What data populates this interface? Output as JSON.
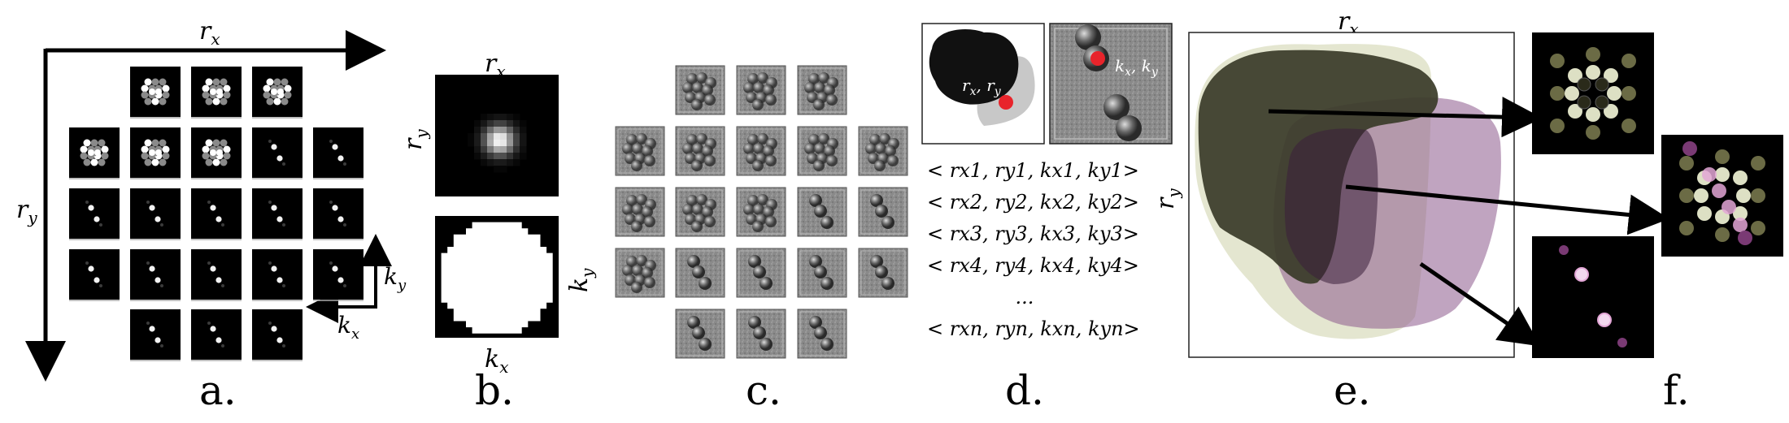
{
  "axis_labels": {
    "rx": "r",
    "rx_sub": "x",
    "ry": "r",
    "ry_sub": "y",
    "kx": "k",
    "kx_sub": "x",
    "ky": "k",
    "ky_sub": "y",
    "d_rxry": "r",
    "d_rxry_mid": "x",
    "d_rxry_sep": ", ",
    "d_rxry_sub2": "y",
    "d_kxky": "k",
    "d_kxky_mid": "x",
    "d_kxky_sub2": "y"
  },
  "tuples": [
    "< rx1, ry1, kx1, ky1>",
    "< rx2, ry2, kx2, ky2>",
    "< rx3, ry3, kx3, ky3>",
    "< rx4, ry4, kx4, ky4>",
    "...",
    "< rxn, ryn, kxn, kyn>"
  ],
  "panel_labels": [
    "a.",
    "b.",
    "c.",
    "d.",
    "e.",
    "f."
  ],
  "colors": {
    "dark_olive": "#3a3b28",
    "purple": "#8c5a8c",
    "light_olive": "#dde0c4",
    "highlight_red": "#e8242b",
    "background": "#ffffff"
  }
}
